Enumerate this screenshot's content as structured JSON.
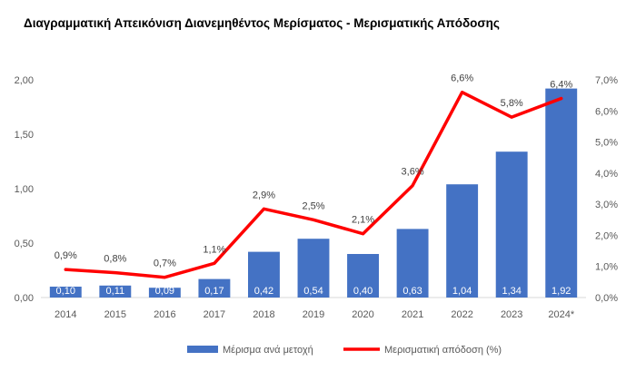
{
  "chart_data": {
    "type": "bar",
    "title": "Διαγραμματική Απεικόνιση Διανεμηθέντος Μερίσματος - Μερισματικής Απόδοσης",
    "categories": [
      "2014",
      "2015",
      "2016",
      "2017",
      "2018",
      "2019",
      "2020",
      "2021",
      "2022",
      "2023",
      "2024*"
    ],
    "series": [
      {
        "name": "Μέρισμα ανά μετοχή",
        "type": "bar",
        "axis": "left",
        "color": "#4472c4",
        "values": [
          0.1,
          0.11,
          0.09,
          0.17,
          0.42,
          0.54,
          0.4,
          0.63,
          1.04,
          1.34,
          1.92
        ],
        "labels": [
          "0,10",
          "0,11",
          "0,09",
          "0,17",
          "0,42",
          "0,54",
          "0,40",
          "0,63",
          "1,04",
          "1,34",
          "1,92"
        ]
      },
      {
        "name": "Μερισματική απόδοση (%)",
        "type": "line",
        "axis": "right",
        "color": "#ff0000",
        "values": [
          0.9,
          0.8,
          0.65,
          1.1,
          2.85,
          2.5,
          2.05,
          3.6,
          6.6,
          5.8,
          6.4
        ],
        "labels": [
          "0,9%",
          "0,8%",
          "0,7%",
          "1,1%",
          "2,9%",
          "2,5%",
          "2,1%",
          "3,6%",
          "6,6%",
          "5,8%",
          "6,4%"
        ]
      }
    ],
    "y_left": {
      "ylim": [
        0,
        2.0
      ],
      "ticks": [
        "0,00",
        "0,50",
        "1,00",
        "1,50",
        "2,00"
      ]
    },
    "y_right": {
      "ylim": [
        0,
        7.0
      ],
      "ticks": [
        "0,0%",
        "1,0%",
        "2,0%",
        "3,0%",
        "4,0%",
        "5,0%",
        "6,0%",
        "7,0%"
      ]
    },
    "grid": false,
    "legend": "bottom"
  }
}
